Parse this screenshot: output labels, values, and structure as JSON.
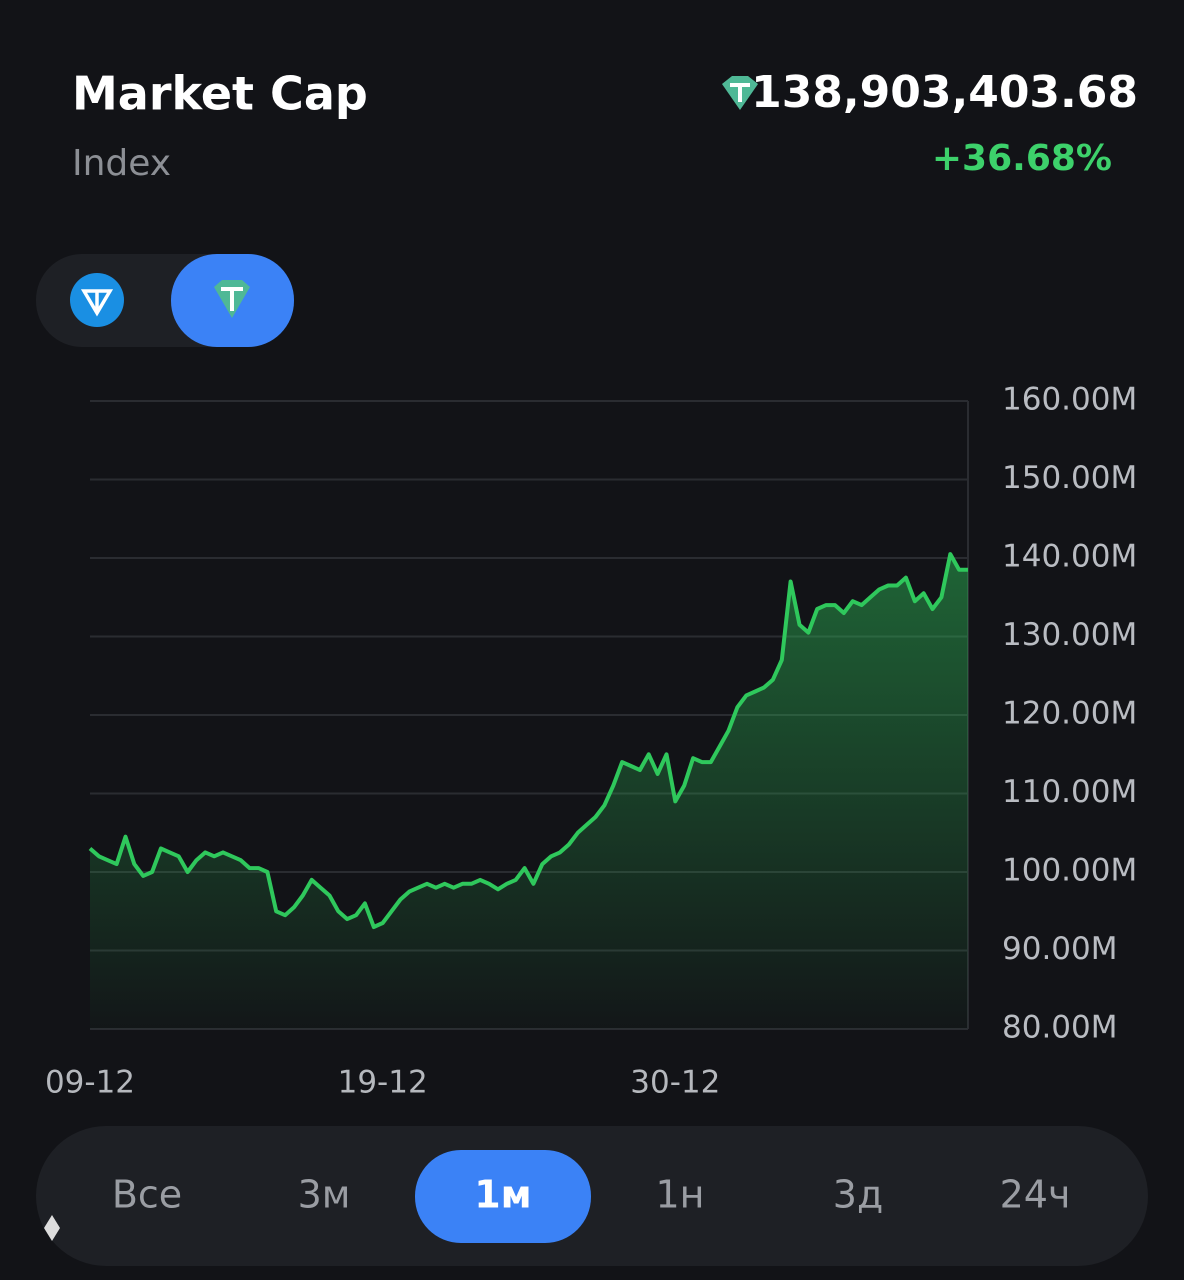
{
  "header": {
    "title": "Market Cap",
    "subtitle": "Index",
    "value": "138,903,403.68",
    "change": "+36.68%"
  },
  "chart_data": {
    "type": "line",
    "series": [
      {
        "name": "Market Cap",
        "color": "#2fc85c",
        "values": [
          103,
          102,
          101.5,
          101,
          104.5,
          101,
          99.5,
          100,
          103,
          102.5,
          102,
          100,
          101.5,
          102.5,
          102,
          102.5,
          102,
          101.5,
          100.5,
          100.5,
          100,
          95,
          94.5,
          95.5,
          97,
          99,
          98,
          97,
          95,
          94,
          94.5,
          96,
          93,
          93.5,
          95,
          96.5,
          97.5,
          98,
          98.5,
          98,
          98.5,
          98,
          98.5,
          98.5,
          99,
          98.5,
          97.8,
          98.5,
          99,
          100.5,
          98.5,
          101,
          102,
          102.5,
          103.5,
          105,
          106,
          107,
          108.5,
          111,
          114,
          113.5,
          113,
          115,
          112.5,
          115,
          109,
          111,
          114.5,
          114,
          114,
          116,
          118,
          121,
          122.5,
          123,
          123.5,
          124.5,
          127,
          137,
          131.5,
          130.5,
          133.5,
          134,
          134,
          133,
          134.5,
          134,
          135,
          136,
          136.5,
          136.5,
          137.5,
          134.5,
          135.5,
          133.5,
          135,
          140.5,
          138.5,
          138.5
        ]
      }
    ],
    "xlim": [
      0,
      99
    ],
    "xticks": [
      {
        "value": 0,
        "label": "09-12"
      },
      {
        "value": 33,
        "label": "19-12"
      },
      {
        "value": 66,
        "label": "30-12"
      }
    ],
    "ylim": [
      80,
      160
    ],
    "yticks": [
      {
        "value": 80,
        "label": "80.00M"
      },
      {
        "value": 90,
        "label": "90.00M"
      },
      {
        "value": 100,
        "label": "100.00M"
      },
      {
        "value": 110,
        "label": "110.00M"
      },
      {
        "value": 120,
        "label": "120.00M"
      },
      {
        "value": 130,
        "label": "130.00M"
      },
      {
        "value": 140,
        "label": "140.00M"
      },
      {
        "value": 150,
        "label": "150.00M"
      },
      {
        "value": 160,
        "label": "160.00M"
      }
    ],
    "grid": true
  },
  "tabs": {
    "items": [
      "Все",
      "3м",
      "1м",
      "1н",
      "3д",
      "24ч"
    ],
    "active": 2
  }
}
